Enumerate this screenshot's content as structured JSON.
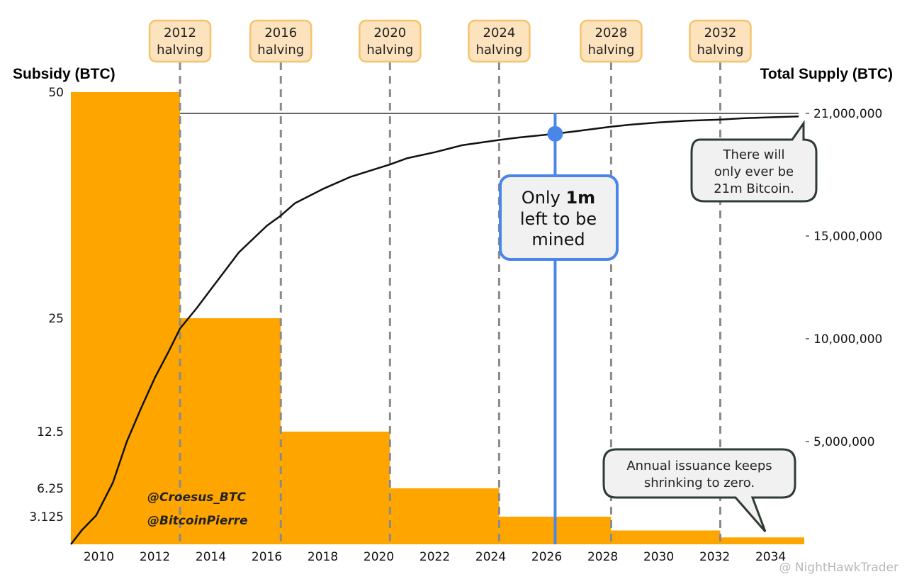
{
  "chart_data": {
    "type": "bar+line",
    "left_axis": {
      "label": "Subsidy (BTC)",
      "ticks": [
        {
          "value": 50,
          "label": "50"
        },
        {
          "value": 25,
          "label": "25"
        },
        {
          "value": 12.5,
          "label": "12.5"
        },
        {
          "value": 6.25,
          "label": "6.25"
        },
        {
          "value": 3.125,
          "label": "3.125"
        }
      ]
    },
    "right_axis": {
      "label": "Total Supply (BTC)",
      "ticks": [
        {
          "value": 21000000,
          "label": "21,000,000"
        },
        {
          "value": 15000000,
          "label": "15,000,000"
        },
        {
          "value": 10000000,
          "label": "10,000,000"
        },
        {
          "value": 5000000,
          "label": "5,000,000"
        }
      ]
    },
    "x_axis": {
      "range": [
        2009,
        2035.2
      ],
      "ticks": [
        2010,
        2012,
        2014,
        2016,
        2018,
        2020,
        2022,
        2024,
        2026,
        2028,
        2030,
        2032,
        2034
      ]
    },
    "subsidy_series": {
      "name": "Subsidy (BTC)",
      "color": "#FFA500",
      "steps": [
        {
          "start": 2009,
          "end": 2012.9,
          "value": 50
        },
        {
          "start": 2012.9,
          "end": 2016.5,
          "value": 25
        },
        {
          "start": 2016.5,
          "end": 2020.4,
          "value": 12.5
        },
        {
          "start": 2020.4,
          "end": 2024.3,
          "value": 6.25
        },
        {
          "start": 2024.3,
          "end": 2028.3,
          "value": 3.125
        },
        {
          "start": 2028.3,
          "end": 2032.2,
          "value": 1.5625
        },
        {
          "start": 2032.2,
          "end": 2035.2,
          "value": 0.78125
        }
      ]
    },
    "supply_series": {
      "name": "Total Supply (BTC)",
      "color": "#111111",
      "points": [
        [
          2009,
          0
        ],
        [
          2009.4,
          700000
        ],
        [
          2009.9,
          1400000
        ],
        [
          2010.5,
          3000000
        ],
        [
          2011,
          5000000
        ],
        [
          2011.5,
          6600000
        ],
        [
          2012,
          8100000
        ],
        [
          2012.5,
          9400000
        ],
        [
          2012.9,
          10500000
        ],
        [
          2013.5,
          11500000
        ],
        [
          2014,
          12400000
        ],
        [
          2015,
          14200000
        ],
        [
          2016,
          15500000
        ],
        [
          2016.5,
          16000000
        ],
        [
          2017,
          16600000
        ],
        [
          2018,
          17300000
        ],
        [
          2019,
          17900000
        ],
        [
          2020.4,
          18500000
        ],
        [
          2021,
          18800000
        ],
        [
          2022,
          19100000
        ],
        [
          2023,
          19450000
        ],
        [
          2024.3,
          19700000
        ],
        [
          2025,
          19820000
        ],
        [
          2026.3,
          20000000
        ],
        [
          2027,
          20120000
        ],
        [
          2028.3,
          20350000
        ],
        [
          2029,
          20450000
        ],
        [
          2030,
          20560000
        ],
        [
          2031,
          20640000
        ],
        [
          2032.2,
          20700000
        ],
        [
          2033,
          20760000
        ],
        [
          2034,
          20810000
        ],
        [
          2035,
          20850000
        ]
      ]
    },
    "max_supply_line": {
      "value": 21000000,
      "start": 2012.9,
      "end": 2035
    },
    "halvings": [
      {
        "year": 2012.9,
        "line1": "2012",
        "line2": "halving"
      },
      {
        "year": 2016.5,
        "line1": "2016",
        "line2": "halving"
      },
      {
        "year": 2020.4,
        "line1": "2020",
        "line2": "halving"
      },
      {
        "year": 2024.3,
        "line1": "2024",
        "line2": "halving"
      },
      {
        "year": 2028.3,
        "line1": "2028",
        "line2": "halving"
      },
      {
        "year": 2032.2,
        "line1": "2032",
        "line2": "halving"
      }
    ],
    "current_marker": {
      "year": 2026.3,
      "supply": 20000000,
      "color": "#4A86E8"
    },
    "annotations": {
      "mined_callout": {
        "prefix": "Only ",
        "bold": "1m",
        "line2": "left to be",
        "line3": "mined"
      },
      "supply_callout": [
        "There will",
        "only ever be",
        "21m Bitcoin."
      ],
      "issuance_callout": [
        "Annual issuance keeps",
        "shrinking to zero."
      ]
    },
    "credits": [
      "@Croesus_BTC",
      "@BitcoinPierre"
    ],
    "watermark": "@ NightHawkTrader"
  },
  "colors": {
    "bar": "#FFA500",
    "marker": "#4A86E8",
    "halving_box_fill": "#FCE2BD",
    "halving_box_stroke": "#F5C36B",
    "callout_fill": "#F1F1F1",
    "callout_stroke": "#2F3B33"
  }
}
